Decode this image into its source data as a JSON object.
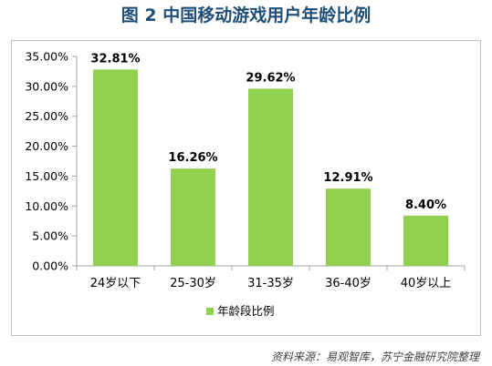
{
  "title": "图 2  中国移动游戏用户年龄比例",
  "source": "资料来源：易观智库，苏宁金融研究院整理",
  "colors": {
    "bar": "#92d050",
    "axis": "#a6a6a6",
    "text": "#000000",
    "title": "#1f4e79"
  },
  "chart_data": {
    "type": "bar",
    "title": "图 2  中国移动游戏用户年龄比例",
    "categories": [
      "24岁以下",
      "25-30岁",
      "31-35岁",
      "36-40岁",
      "40岁以上"
    ],
    "series": [
      {
        "name": "年龄段比例",
        "values": [
          32.81,
          16.26,
          29.62,
          12.91,
          8.4
        ]
      }
    ],
    "data_labels": [
      "32.81%",
      "16.26%",
      "29.62%",
      "12.91%",
      "8.40%"
    ],
    "yticks": [
      "0.00%",
      "5.00%",
      "10.00%",
      "15.00%",
      "20.00%",
      "25.00%",
      "30.00%",
      "35.00%"
    ],
    "ylim": [
      0,
      35
    ],
    "grid": false,
    "legend": "bottom"
  }
}
